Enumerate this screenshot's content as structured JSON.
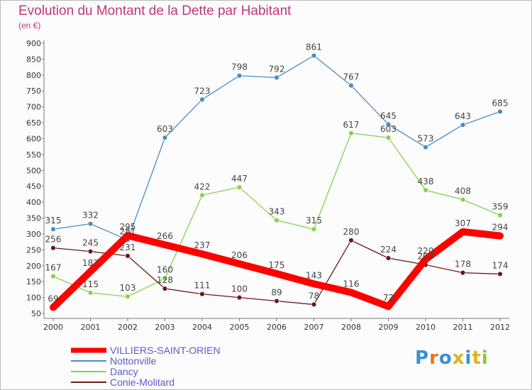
{
  "header": {
    "title": "Evolution du Montant de la Dette par Habitant",
    "subtitle": "(en €)"
  },
  "logo": {
    "text": "Proxiti",
    "colors": [
      "#3a8fd8",
      "#e8731e",
      "#3a8fd8",
      "#e2b11c",
      "#3a8fd8",
      "#e2b11c",
      "#8cc43c"
    ]
  },
  "chart_data": {
    "type": "line",
    "title": "Evolution du Montant de la Dette par Habitant",
    "subtitle": "(en €)",
    "x": [
      "2000",
      "2001",
      "2002",
      "2003",
      "2004",
      "2005",
      "2006",
      "2007",
      "2008",
      "2009",
      "2010",
      "2011",
      "2012"
    ],
    "ylim": [
      50,
      900
    ],
    "yticks": [
      50,
      100,
      150,
      200,
      250,
      300,
      350,
      400,
      450,
      500,
      550,
      600,
      650,
      700,
      750,
      800,
      850,
      900
    ],
    "grid": false,
    "legend_position": "bottom-left",
    "series": [
      {
        "name": "VILLIERS-SAINT-ORIEN",
        "color": "#ff0000",
        "values": [
          69,
          182,
          295,
          266,
          237,
          206,
          175,
          143,
          116,
          72,
          220,
          307,
          294
        ]
      },
      {
        "name": "Nottonville",
        "color": "#4a8cc8",
        "values": [
          315,
          332,
          281,
          603,
          723,
          798,
          792,
          861,
          767,
          645,
          573,
          643,
          685
        ]
      },
      {
        "name": "Dancy",
        "color": "#84d34a",
        "values": [
          167,
          115,
          103,
          160,
          422,
          447,
          343,
          315,
          617,
          603,
          438,
          408,
          359
        ]
      },
      {
        "name": "Conie-Molitard",
        "color": "#6b1a1a",
        "values": [
          256,
          245,
          231,
          128,
          111,
          100,
          89,
          78,
          280,
          224,
          203,
          178,
          174
        ]
      }
    ]
  }
}
